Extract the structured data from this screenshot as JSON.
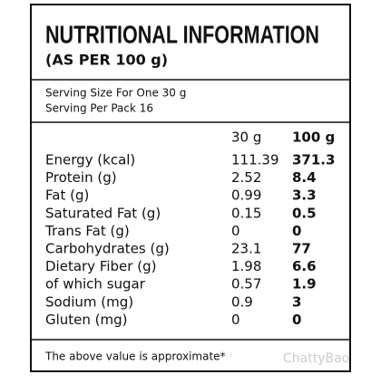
{
  "header": {
    "title": "NUTRITIONAL INFORMATION",
    "subtitle": "(AS PER 100 g)"
  },
  "serving": {
    "size": "Serving Size For One 30 g",
    "per_pack": "Serving Per Pack 16"
  },
  "table": {
    "columns": [
      "30 g",
      "100 g"
    ],
    "rows": [
      [
        "Energy (kcal)",
        "111.39",
        "371.3"
      ],
      [
        "Protein (g)",
        "2.52",
        "8.4"
      ],
      [
        "Fat (g)",
        "0.99",
        "3.3"
      ],
      [
        "Saturated Fat (g)",
        "0.15",
        "0.5"
      ],
      [
        "Trans Fat (g)",
        "0",
        "0"
      ],
      [
        "Carbohydrates (g)",
        "23.1",
        "77"
      ],
      [
        "Dietary Fiber (g)",
        "1.98",
        "6.6"
      ],
      [
        "of which sugar",
        "0.57",
        "1.9"
      ],
      [
        "Sodium (mg)",
        "0.9",
        "3"
      ],
      [
        "Gluten (mg)",
        "0",
        "0"
      ]
    ]
  },
  "footer": {
    "note": "The above value is approximate*"
  },
  "watermark": "ChattyBao"
}
